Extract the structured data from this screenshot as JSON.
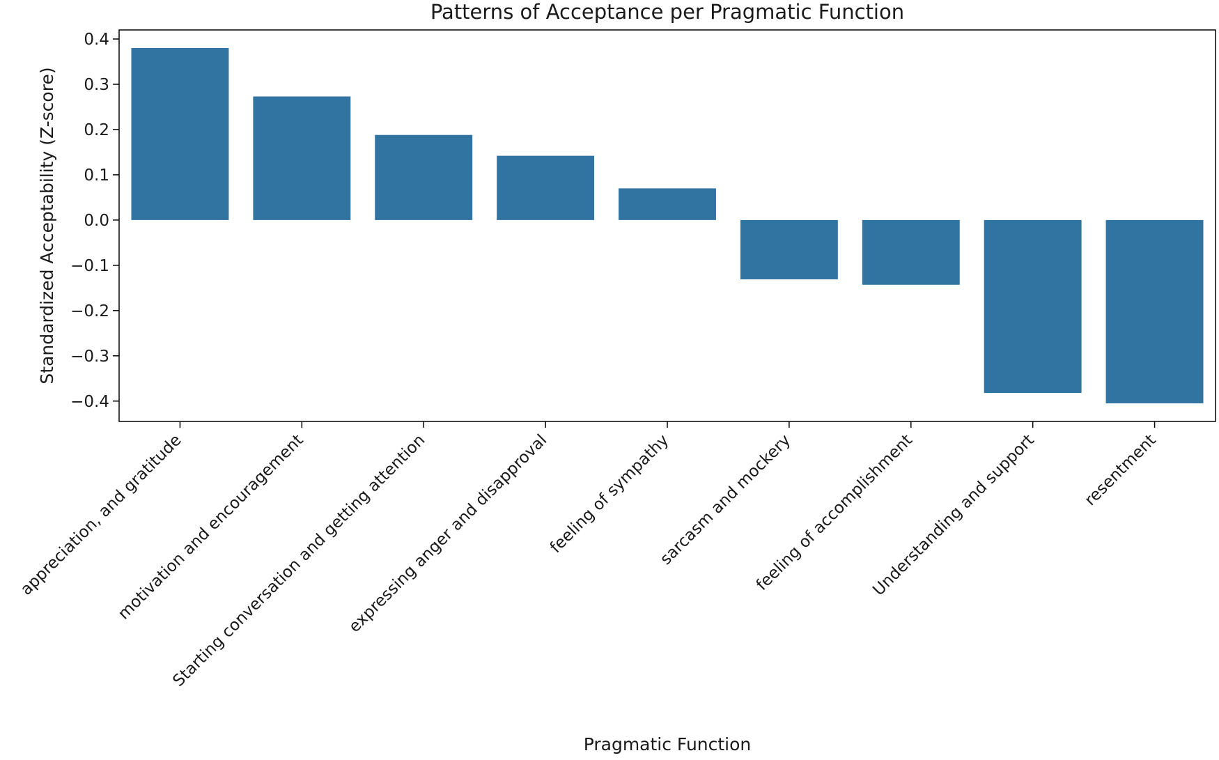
{
  "chart_data": {
    "type": "bar",
    "title": "Patterns of Acceptance per Pragmatic Function",
    "xlabel": "Pragmatic Function",
    "ylabel": "Standardized Acceptability (Z-score)",
    "categories": [
      "appreciation, and gratitude",
      "motivation and encouragement",
      "Starting conversation and getting attention",
      "expressing anger and disapproval",
      "feeling of sympathy",
      "sarcasm and mockery",
      "feeling of accomplishment",
      "Understanding and support",
      "resentment"
    ],
    "values": [
      0.38,
      0.273,
      0.188,
      0.142,
      0.07,
      -0.131,
      -0.143,
      -0.382,
      -0.405
    ],
    "yticks": [
      "0.4",
      "0.3",
      "0.2",
      "0.1",
      "0.0",
      "−0.1",
      "−0.2",
      "−0.3",
      "−0.4"
    ],
    "ytick_values": [
      0.4,
      0.3,
      0.2,
      0.1,
      0.0,
      -0.1,
      -0.2,
      -0.3,
      -0.4
    ],
    "ylim": [
      -0.445,
      0.42
    ],
    "grid": false,
    "bar_color": "#3274a1",
    "axis_color": "#000000"
  }
}
